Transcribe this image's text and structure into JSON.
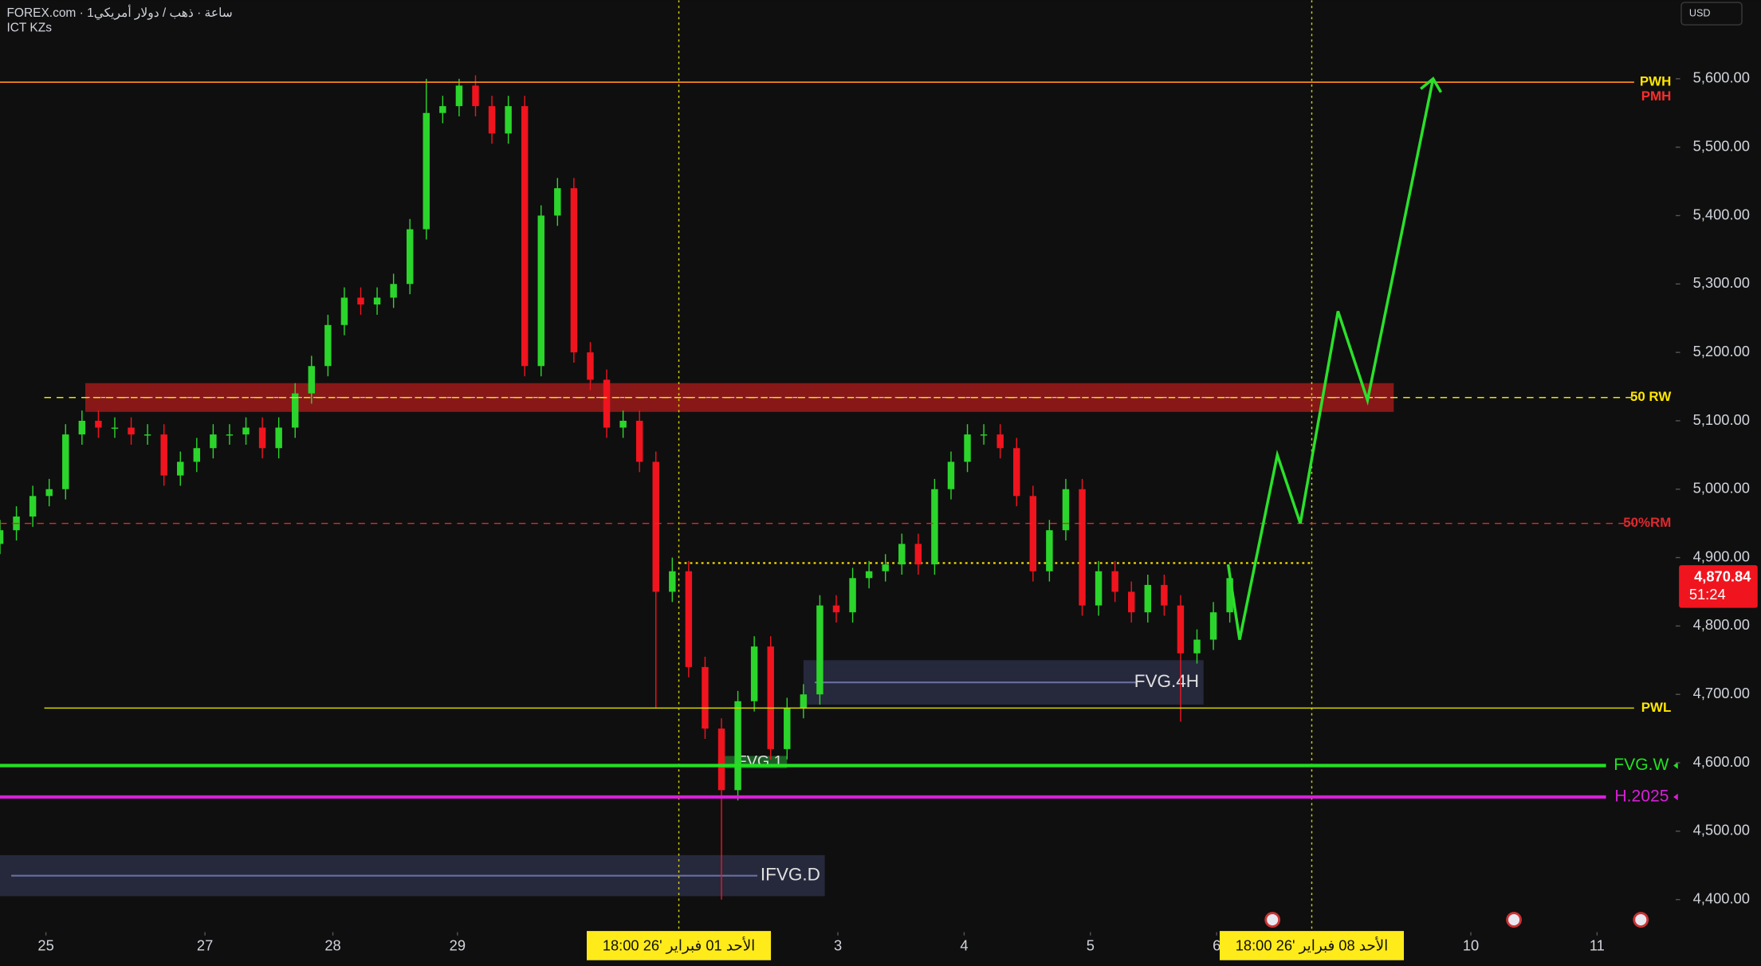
{
  "header": {
    "symbol": "FOREX.com · 1ساعة · ذهب / دولار أمريكي",
    "indicator": "ICT KZs",
    "currency": "USD"
  },
  "chart_data": {
    "type": "candlestick",
    "up_color": "#2bd52b",
    "down_color": "#f0141e",
    "open": [
      4920,
      4940,
      4960,
      4990,
      5000,
      5080,
      5100,
      5090,
      5090,
      5080,
      5080,
      5020,
      5040,
      5060,
      5080,
      5080,
      5090,
      5060,
      5090,
      5140,
      5180,
      5240,
      5280,
      5270,
      5280,
      5300,
      5380,
      5550,
      5560,
      5590,
      5560,
      5520,
      5560,
      5180,
      5400,
      5440,
      5200,
      5160,
      5090,
      5100,
      5040,
      4850,
      4880,
      4740,
      4650,
      4560,
      4690,
      4770,
      4620,
      4680,
      4700,
      4830,
      4820,
      4870,
      4880,
      4890,
      4920,
      4890,
      5000,
      5040,
      5080,
      5080,
      5060,
      4990,
      4880,
      4940,
      5000,
      4830,
      4880,
      4850,
      4820,
      4860,
      4830,
      4760,
      4780,
      4820
    ],
    "high": [
      4955,
      4975,
      5005,
      5015,
      5095,
      5115,
      5115,
      5105,
      5105,
      5095,
      5095,
      5055,
      5075,
      5095,
      5095,
      5105,
      5105,
      5105,
      5155,
      5195,
      5255,
      5295,
      5295,
      5295,
      5315,
      5395,
      5600,
      5575,
      5600,
      5605,
      5575,
      5575,
      5575,
      5415,
      5455,
      5455,
      5215,
      5175,
      5115,
      5115,
      5055,
      4900,
      4895,
      4755,
      4665,
      4705,
      4785,
      4785,
      4695,
      4715,
      4845,
      4845,
      4885,
      4895,
      4905,
      4935,
      4935,
      5015,
      5055,
      5095,
      5095,
      5095,
      5075,
      5005,
      4955,
      5015,
      5015,
      4895,
      4895,
      4865,
      4875,
      4875,
      4845,
      4795,
      4835,
      4885
    ],
    "low": [
      4905,
      4925,
      4945,
      4975,
      4985,
      5065,
      5075,
      5075,
      5065,
      5065,
      5005,
      5005,
      5025,
      5045,
      5065,
      5065,
      5045,
      5045,
      5075,
      5125,
      5165,
      5225,
      5255,
      5255,
      5265,
      5285,
      5365,
      5535,
      5545,
      5545,
      5505,
      5505,
      5165,
      5165,
      5385,
      5185,
      5145,
      5075,
      5075,
      5025,
      4680,
      4835,
      4725,
      4635,
      4400,
      4545,
      4675,
      4605,
      4605,
      4665,
      4685,
      4805,
      4805,
      4855,
      4865,
      4875,
      4875,
      4875,
      4985,
      5025,
      5065,
      5045,
      4975,
      4865,
      4865,
      4925,
      4815,
      4815,
      4835,
      4805,
      4805,
      4815,
      4660,
      4745,
      4765,
      4805
    ],
    "close": [
      4940,
      4960,
      4990,
      5000,
      5080,
      5100,
      5090,
      5090,
      5080,
      5080,
      5020,
      5040,
      5060,
      5080,
      5080,
      5090,
      5060,
      5090,
      5140,
      5180,
      5240,
      5280,
      5270,
      5280,
      5300,
      5380,
      5550,
      5560,
      5590,
      5560,
      5520,
      5560,
      5180,
      5400,
      5440,
      5200,
      5160,
      5090,
      5100,
      5040,
      4850,
      4880,
      4740,
      4650,
      4560,
      4690,
      4770,
      4620,
      4680,
      4700,
      4830,
      4820,
      4870,
      4880,
      4890,
      4920,
      4890,
      5000,
      5040,
      5080,
      5080,
      5060,
      4990,
      4880,
      4940,
      5000,
      4830,
      4880,
      4850,
      4820,
      4860,
      4830,
      4760,
      4780,
      4820,
      4870
    ],
    "xlim": [
      0,
      100
    ],
    "ylim": [
      4352.4,
      5714.9
    ],
    "yticks": [
      {
        "value": 5600,
        "label": "5,600.00"
      },
      {
        "value": 5500,
        "label": "5,500.00"
      },
      {
        "value": 5400,
        "label": "5,400.00"
      },
      {
        "value": 5300,
        "label": "5,300.00"
      },
      {
        "value": 5200,
        "label": "5,200.00"
      },
      {
        "value": 5100,
        "label": "5,100.00"
      },
      {
        "value": 5000,
        "label": "5,000.00"
      },
      {
        "value": 4900,
        "label": "4,900.00"
      },
      {
        "value": 4800,
        "label": "4,800.00"
      },
      {
        "value": 4700,
        "label": "4,700.00"
      },
      {
        "value": 4600,
        "label": "4,600.00"
      },
      {
        "value": 4500,
        "label": "4,500.00"
      },
      {
        "value": 4400,
        "label": "4,400.00"
      }
    ],
    "xticks": [
      {
        "value": 2.8,
        "label": "25"
      },
      {
        "value": 12.5,
        "label": "27"
      },
      {
        "value": 20.3,
        "label": "28"
      },
      {
        "value": 27.9,
        "label": "29"
      },
      {
        "value": 51.1,
        "label": "3"
      },
      {
        "value": 58.8,
        "label": "4"
      },
      {
        "value": 66.5,
        "label": "5"
      },
      {
        "value": 74.2,
        "label": "6"
      },
      {
        "value": 89.7,
        "label": "10"
      },
      {
        "value": 97.4,
        "label": "11"
      }
    ],
    "levels": [
      {
        "name": "PWH",
        "value": 5595,
        "color": "#ff8c1a",
        "label_color": "#ffe600",
        "from": 0
      },
      {
        "name": "PMH",
        "value": 5595,
        "color": "#ff8c1a",
        "label_color": "#ff2d2d",
        "from": 0
      },
      {
        "name": "50 RW",
        "value": 5134,
        "color": "#e6e600",
        "label_color": "#ffe600",
        "from": 2.7,
        "dash": true
      },
      {
        "name": "50%RM",
        "value": 4950,
        "color": "#e0282e",
        "label_color": "#e0282e",
        "from": 0,
        "dash": true
      },
      {
        "name": "PWL",
        "value": 4680,
        "color": "#d6d600",
        "label_color": "#ffe600",
        "from": 2.7
      },
      {
        "name": "FVG.W",
        "value": 4596,
        "color": "#22e022",
        "label_color": "#22e022",
        "from": 0,
        "bold": true
      },
      {
        "name": "H.2025",
        "value": 4550,
        "color": "#d81fd8",
        "label_color": "#d81fd8",
        "from": 0,
        "bold": true
      }
    ],
    "segments": [
      {
        "value": 4892,
        "x": [
          41.4,
          80
        ],
        "color": "#ffe600"
      }
    ],
    "zones": [
      {
        "low": 5113,
        "high": 5155,
        "x": [
          5.2,
          85
        ],
        "color": "#9e1a1a"
      },
      {
        "low": 4685,
        "high": 4750,
        "x": [
          49,
          73.4
        ],
        "color": "#2a2d44",
        "label": "FVG.4H"
      },
      {
        "low": 4405,
        "high": 4465,
        "x": [
          0,
          50.3
        ],
        "color": "#2a2d44",
        "label": "IFVG.D"
      },
      {
        "low": 4592,
        "high": 4610,
        "x": [
          43.8,
          48
        ],
        "color": "#1f6b2a",
        "label": "FVG.1"
      }
    ],
    "projection": {
      "color": "#2be02b",
      "x": [
        74.9,
        75.6,
        77.9,
        79.3,
        81.6,
        83.4,
        87.4
      ],
      "values": [
        4890,
        4780,
        5050,
        4950,
        5260,
        5130,
        5600
      ]
    },
    "vlines": [
      {
        "x": 41.4,
        "label": "الأحد 01 فبراير '26   18:00"
      },
      {
        "x": 80,
        "label": "الأحد 08 فبراير '26   18:00"
      }
    ],
    "last_price": {
      "value": 4870.84,
      "label": "4,870.84",
      "countdown": "51:24",
      "color": "#f0141e"
    }
  }
}
